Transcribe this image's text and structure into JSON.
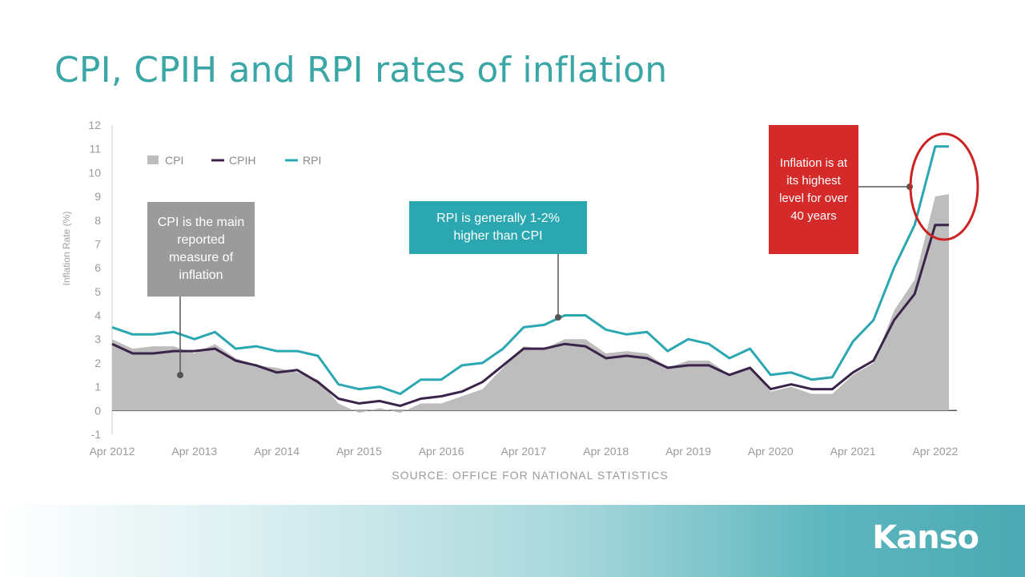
{
  "page": {
    "title": "CPI, CPIH and RPI rates of inflation",
    "source": "SOURCE: OFFICE FOR NATIONAL STATISTICS",
    "brand": "Kanso",
    "callouts": {
      "cpi": "CPI is the main reported measure of inflation",
      "rpi": "RPI is generally 1-2% higher than CPI",
      "inflation": "Inflation is at its highest level for over 40 years"
    }
  },
  "chart_data": {
    "type": "line",
    "ylabel": "Inflation Rate (%)",
    "xlabel": "",
    "ylim": [
      -1,
      12
    ],
    "yticks": [
      -1,
      0,
      1,
      2,
      3,
      4,
      5,
      6,
      7,
      8,
      9,
      10,
      11,
      12
    ],
    "xlim": [
      "2012-04",
      "2022-06"
    ],
    "xticks": [
      "Apr 2012",
      "Apr 2013",
      "Apr 2014",
      "Apr 2015",
      "Apr 2016",
      "Apr 2017",
      "Apr 2018",
      "Apr 2019",
      "Apr 2020",
      "Apr 2021",
      "Apr 2022"
    ],
    "legend_position": "top-left",
    "grid": false,
    "x": [
      "2012-04",
      "2012-07",
      "2012-10",
      "2013-01",
      "2013-04",
      "2013-07",
      "2013-10",
      "2014-01",
      "2014-04",
      "2014-07",
      "2014-10",
      "2015-01",
      "2015-04",
      "2015-07",
      "2015-10",
      "2016-01",
      "2016-04",
      "2016-07",
      "2016-10",
      "2017-01",
      "2017-04",
      "2017-07",
      "2017-10",
      "2018-01",
      "2018-04",
      "2018-07",
      "2018-10",
      "2019-01",
      "2019-04",
      "2019-07",
      "2019-10",
      "2020-01",
      "2020-04",
      "2020-07",
      "2020-10",
      "2021-01",
      "2021-04",
      "2021-07",
      "2021-10",
      "2022-01",
      "2022-04",
      "2022-06"
    ],
    "series": [
      {
        "name": "CPI",
        "style": "area",
        "color": "#bdbdbd",
        "values": [
          3.0,
          2.6,
          2.7,
          2.7,
          2.4,
          2.8,
          2.2,
          1.9,
          1.8,
          1.6,
          1.3,
          0.3,
          -0.1,
          0.1,
          -0.1,
          0.3,
          0.3,
          0.6,
          0.9,
          1.8,
          2.7,
          2.6,
          3.0,
          3.0,
          2.4,
          2.5,
          2.4,
          1.8,
          2.1,
          2.1,
          1.5,
          1.8,
          0.8,
          1.0,
          0.7,
          0.7,
          1.5,
          2.0,
          4.2,
          5.5,
          9.0,
          9.1
        ]
      },
      {
        "name": "CPIH",
        "style": "line",
        "color": "#3a2449",
        "values": [
          2.8,
          2.4,
          2.4,
          2.5,
          2.5,
          2.6,
          2.1,
          1.9,
          1.6,
          1.7,
          1.2,
          0.5,
          0.3,
          0.4,
          0.2,
          0.5,
          0.6,
          0.8,
          1.2,
          1.9,
          2.6,
          2.6,
          2.8,
          2.7,
          2.2,
          2.3,
          2.2,
          1.8,
          1.9,
          1.9,
          1.5,
          1.8,
          0.9,
          1.1,
          0.9,
          0.9,
          1.6,
          2.1,
          3.8,
          4.9,
          7.8,
          7.8
        ]
      },
      {
        "name": "RPI",
        "style": "line",
        "color": "#2aa7b0",
        "values": [
          3.5,
          3.2,
          3.2,
          3.3,
          3.0,
          3.3,
          2.6,
          2.7,
          2.5,
          2.5,
          2.3,
          1.1,
          0.9,
          1.0,
          0.7,
          1.3,
          1.3,
          1.9,
          2.0,
          2.6,
          3.5,
          3.6,
          4.0,
          4.0,
          3.4,
          3.2,
          3.3,
          2.5,
          3.0,
          2.8,
          2.2,
          2.6,
          1.5,
          1.6,
          1.3,
          1.4,
          2.9,
          3.8,
          6.0,
          7.8,
          11.1,
          11.1
        ]
      }
    ]
  },
  "colors": {
    "title": "#3aa6a6",
    "cpi_callout": "#9b9b9b",
    "rpi_callout": "#2aa7b0",
    "inflation_callout": "#d42a2a",
    "highlight_ring": "#cc2222"
  }
}
